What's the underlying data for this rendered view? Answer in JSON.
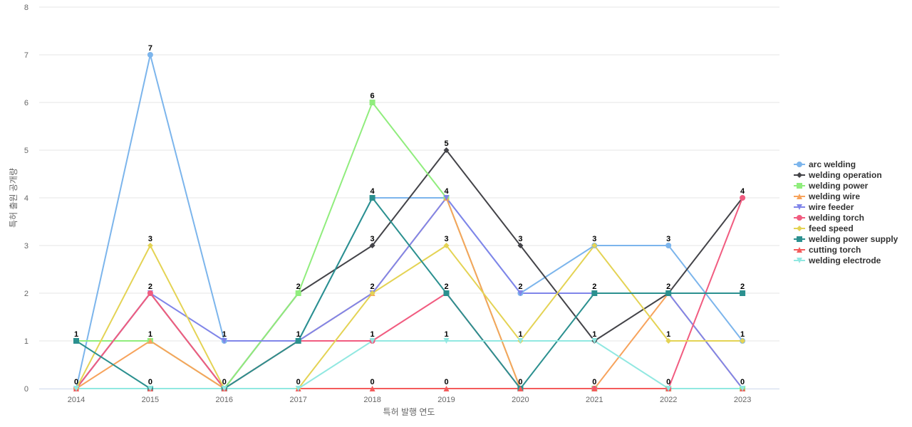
{
  "chart_data": {
    "type": "line",
    "xlabel": "특허 발행 연도",
    "ylabel": "특허 출원 공개량",
    "ylim": [
      0,
      8
    ],
    "yticks": [
      0,
      1,
      2,
      3,
      4,
      5,
      6,
      7,
      8
    ],
    "grid": true,
    "legend_position": "right",
    "categories": [
      "2014",
      "2015",
      "2016",
      "2017",
      "2018",
      "2019",
      "2020",
      "2021",
      "2022",
      "2023"
    ],
    "series": [
      {
        "name": "arc welding",
        "color": "#7cb5ec",
        "marker": "circle",
        "values": [
          0,
          7,
          1,
          1,
          4,
          4,
          2,
          3,
          3,
          1
        ]
      },
      {
        "name": "welding operation",
        "color": "#434348",
        "marker": "diamond",
        "values": [
          0,
          2,
          0,
          2,
          3,
          5,
          3,
          1,
          2,
          4
        ]
      },
      {
        "name": "welding power",
        "color": "#90ed7d",
        "marker": "square",
        "values": [
          1,
          1,
          0,
          2,
          6,
          4,
          0,
          0,
          0,
          0
        ]
      },
      {
        "name": "welding wire",
        "color": "#f7a35c",
        "marker": "triangle",
        "values": [
          0,
          1,
          0,
          1,
          2,
          4,
          0,
          0,
          2,
          0
        ]
      },
      {
        "name": "wire feeder",
        "color": "#8085e9",
        "marker": "triangle-down",
        "values": [
          0,
          2,
          1,
          1,
          2,
          4,
          2,
          2,
          2,
          0
        ]
      },
      {
        "name": "welding torch",
        "color": "#f15c80",
        "marker": "circle",
        "values": [
          0,
          2,
          0,
          1,
          1,
          2,
          0,
          0,
          0,
          4
        ]
      },
      {
        "name": "feed speed",
        "color": "#e4d354",
        "marker": "diamond",
        "values": [
          0,
          3,
          0,
          0,
          2,
          3,
          1,
          3,
          1,
          1
        ]
      },
      {
        "name": "welding power supply",
        "color": "#2b908f",
        "marker": "square",
        "values": [
          1,
          0,
          0,
          1,
          4,
          2,
          0,
          2,
          2,
          2
        ]
      },
      {
        "name": "cutting torch",
        "color": "#f45b5b",
        "marker": "triangle",
        "values": [
          0,
          0,
          0,
          0,
          0,
          0,
          0,
          0,
          0,
          0
        ]
      },
      {
        "name": "welding electrode",
        "color": "#91e8e1",
        "marker": "triangle-down",
        "values": [
          0,
          0,
          0,
          0,
          1,
          1,
          1,
          1,
          0,
          0
        ]
      }
    ],
    "data_labels": [
      {
        "x": "2014",
        "value": 1
      },
      {
        "x": "2014",
        "value": 0
      },
      {
        "x": "2015",
        "value": 7
      },
      {
        "x": "2015",
        "value": 3
      },
      {
        "x": "2015",
        "value": 2
      },
      {
        "x": "2015",
        "value": 1
      },
      {
        "x": "2015",
        "value": 0
      },
      {
        "x": "2016",
        "value": 1
      },
      {
        "x": "2016",
        "value": 0
      },
      {
        "x": "2017",
        "value": 2
      },
      {
        "x": "2017",
        "value": 1
      },
      {
        "x": "2017",
        "value": 0
      },
      {
        "x": "2018",
        "value": 6
      },
      {
        "x": "2018",
        "value": 4
      },
      {
        "x": "2018",
        "value": 3
      },
      {
        "x": "2018",
        "value": 2
      },
      {
        "x": "2018",
        "value": 1
      },
      {
        "x": "2018",
        "value": 0
      },
      {
        "x": "2019",
        "value": 5
      },
      {
        "x": "2019",
        "value": 4
      },
      {
        "x": "2019",
        "value": 3
      },
      {
        "x": "2019",
        "value": 2
      },
      {
        "x": "2019",
        "value": 1
      },
      {
        "x": "2019",
        "value": 0
      },
      {
        "x": "2020",
        "value": 3
      },
      {
        "x": "2020",
        "value": 2
      },
      {
        "x": "2020",
        "value": 1
      },
      {
        "x": "2020",
        "value": 0
      },
      {
        "x": "2021",
        "value": 3
      },
      {
        "x": "2021",
        "value": 2
      },
      {
        "x": "2021",
        "value": 1
      },
      {
        "x": "2021",
        "value": 0
      },
      {
        "x": "2022",
        "value": 3
      },
      {
        "x": "2022",
        "value": 2
      },
      {
        "x": "2022",
        "value": 1
      },
      {
        "x": "2022",
        "value": 0
      },
      {
        "x": "2023",
        "value": 4
      },
      {
        "x": "2023",
        "value": 2
      },
      {
        "x": "2023",
        "value": 1
      },
      {
        "x": "2023",
        "value": 0
      }
    ]
  }
}
